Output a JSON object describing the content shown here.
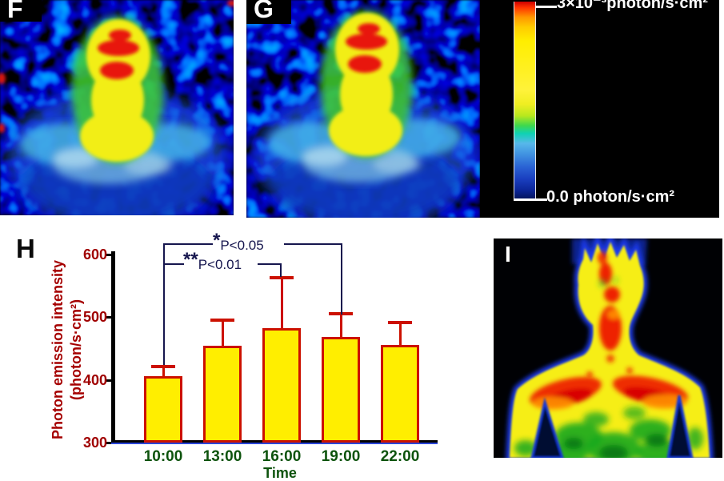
{
  "panels": {
    "f": {
      "label": "F"
    },
    "g": {
      "label": "G"
    },
    "h": {
      "label": "H"
    },
    "i": {
      "label": "I"
    }
  },
  "colorbar": {
    "max_label": "3×10⁻³photon/s·cm²",
    "min_label": "0.0 photon/s·cm²"
  },
  "chart_data": {
    "type": "bar",
    "title": "",
    "categories": [
      "10:00",
      "13:00",
      "16:00",
      "19:00",
      "22:00"
    ],
    "values": [
      406,
      454,
      483,
      469,
      456
    ],
    "error_upper": [
      15,
      41,
      80,
      37,
      35
    ],
    "xlabel": "Time",
    "ylabel_line1": "Photon emission intensity",
    "ylabel_line2": "(photon/s·cm²)",
    "yticks": [
      300,
      400,
      500,
      600
    ],
    "ylim": [
      300,
      600
    ],
    "grid": false,
    "legend": null,
    "bar_fill": "#ffee00",
    "bar_border": "#cc1100",
    "significance": [
      {
        "star": "**",
        "text": "P<0.01",
        "from": "10:00",
        "to": "16:00"
      },
      {
        "star": "*",
        "text": "P<0.05",
        "from": "10:00",
        "to": "19:00"
      }
    ]
  },
  "colors": {
    "ytick_color": "#a00000",
    "xtick_color": "#0d530d",
    "sig_color": "#16164e",
    "axis_underline_blue": "#2b46d9",
    "panel_background": "#000000"
  }
}
